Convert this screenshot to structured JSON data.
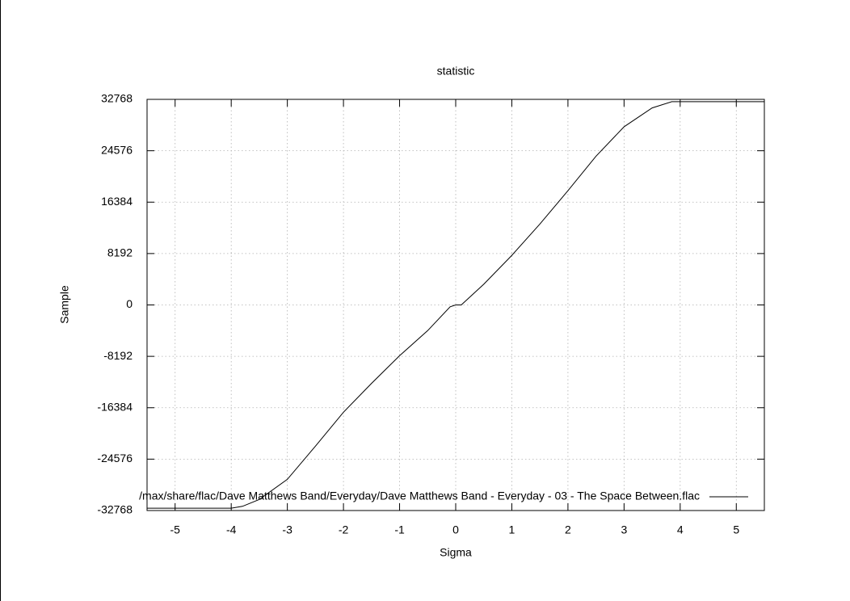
{
  "chart_data": {
    "type": "line",
    "title": "statistic",
    "x_label": "Sigma",
    "y_label": "Sample",
    "x": [
      -5.5,
      -4,
      -3.8,
      -3.5,
      -3,
      -2.5,
      -2,
      -1.5,
      -1,
      -0.5,
      -0.1,
      0,
      0.1,
      0.5,
      1,
      1.5,
      2,
      2.5,
      3,
      3.5,
      3.85,
      5.5
    ],
    "series": [
      {
        "name": "/max/share/flac/Dave Matthews Band/Everyday/Dave Matthews Band - Everyday - 03 - The Space Between.flac",
        "color": "#000000",
        "values": [
          -32400,
          -32400,
          -32100,
          -31000,
          -27800,
          -22500,
          -17100,
          -12500,
          -8100,
          -4100,
          -300,
          0,
          0,
          3300,
          7900,
          12900,
          18200,
          23700,
          28400,
          31400,
          32400,
          32400
        ]
      }
    ],
    "xlim": [
      -5.5,
      5.5
    ],
    "xticks": [
      -5,
      -4,
      -3,
      -2,
      -1,
      0,
      1,
      2,
      3,
      4,
      5
    ],
    "ylim": [
      -32768,
      32768
    ],
    "yticks": [
      -32768,
      -24576,
      -16384,
      -8192,
      0,
      8192,
      16384,
      24576,
      32768
    ],
    "grid": true,
    "legend": "bottom-right"
  }
}
